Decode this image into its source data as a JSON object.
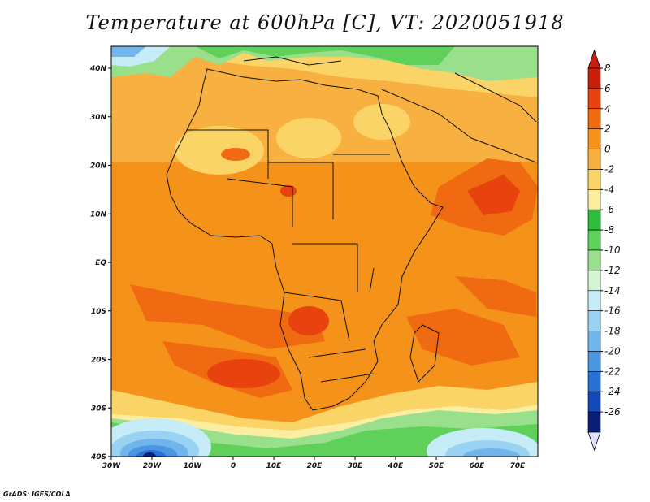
{
  "title": "Temperature at 600hPa [C], VT: 2020051918",
  "credit": "GrADS: IGES/COLA",
  "map": {
    "lon_ticks": [
      "30W",
      "20W",
      "10W",
      "0",
      "10E",
      "20E",
      "30E",
      "40E",
      "50E",
      "60E",
      "70E"
    ],
    "lat_ticks": [
      "40N",
      "30N",
      "20N",
      "10N",
      "EQ",
      "10S",
      "20S",
      "30S",
      "40S"
    ]
  },
  "colorbar": {
    "labels": [
      "8",
      "6",
      "4",
      "2",
      "0",
      "-2",
      "-4",
      "-6",
      "-8",
      "-10",
      "-12",
      "-14",
      "-16",
      "-18",
      "-20",
      "-22",
      "-24",
      "-26"
    ],
    "colors": [
      "#c81e0a",
      "#e8420e",
      "#f06a12",
      "#f5921a",
      "#f8b040",
      "#fad466",
      "#fbeea0",
      "#2ebd3a",
      "#5fd05a",
      "#9ae08c",
      "#d6f5d6",
      "#c6ecf8",
      "#9ad2f2",
      "#70b6ec",
      "#4a96e0",
      "#2870d4",
      "#1248b8",
      "#0a1e78"
    ],
    "top_arrow_color": "#c81e0a",
    "bottom_arrow_color": "#e0e0f8"
  }
}
